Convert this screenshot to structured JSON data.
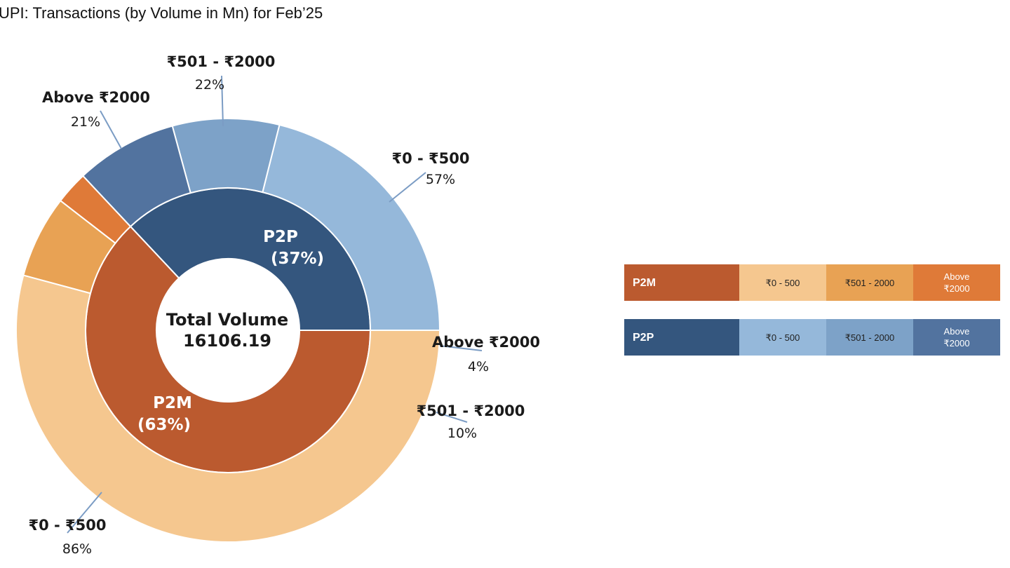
{
  "title": "UPI: Transactions (by Volume in Mn) for Feb’25",
  "chart_data": {
    "type": "pie",
    "variant": "nested-donut",
    "center_label": "Total Volume",
    "total": "16106.19",
    "inner": [
      {
        "name": "P2P",
        "label": "P2P",
        "pct_label": "(37%)",
        "value": 37,
        "color": "#34567e"
      },
      {
        "name": "P2M",
        "label": "P2M",
        "pct_label": "(63%)",
        "value": 63,
        "color": "#bb5a2f"
      }
    ],
    "outer": [
      {
        "group": "P2P",
        "label": "₹0 - ₹500",
        "pct_label": "57%",
        "share": 57,
        "color": "#95b8da"
      },
      {
        "group": "P2P",
        "label": "₹501 - ₹2000",
        "pct_label": "22%",
        "share": 22,
        "color": "#7da2c8"
      },
      {
        "group": "P2P",
        "label": "Above ₹2000",
        "pct_label": "21%",
        "share": 21,
        "color": "#52739f"
      },
      {
        "group": "P2M",
        "label": "₹0 - ₹500",
        "pct_label": "86%",
        "share": 86,
        "color": "#f5c78f"
      },
      {
        "group": "P2M",
        "label": "₹501 - ₹2000",
        "pct_label": "10%",
        "share": 10,
        "color": "#e8a254"
      },
      {
        "group": "P2M",
        "label": "Above ₹2000",
        "pct_label": "4%",
        "share": 4,
        "color": "#df7a38"
      }
    ]
  },
  "legend": [
    {
      "name": "P2M",
      "head": "P2M",
      "head_color": "#bb5a2f",
      "cells": [
        {
          "label": "₹0 - 500",
          "color": "#f5c78f",
          "text_color": "#222"
        },
        {
          "label": "₹501 - 2000",
          "color": "#e8a254",
          "text_color": "#222"
        },
        {
          "label": "Above ₹2000",
          "color": "#df7a38",
          "text_color": "#ffffff"
        }
      ]
    },
    {
      "name": "P2P",
      "head": "P2P",
      "head_color": "#34567e",
      "cells": [
        {
          "label": "₹0 - 500",
          "color": "#95b8da",
          "text_color": "#222"
        },
        {
          "label": "₹501 - 2000",
          "color": "#7da2c8",
          "text_color": "#222"
        },
        {
          "label": "Above ₹2000",
          "color": "#52739f",
          "text_color": "#ffffff"
        }
      ]
    }
  ]
}
